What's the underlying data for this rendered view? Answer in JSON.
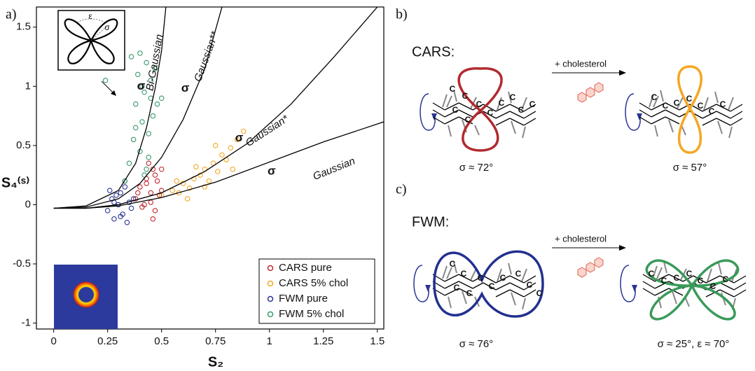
{
  "panel_labels": {
    "a": "a)",
    "b": "b)",
    "c": "c)"
  },
  "chart_data": {
    "type": "scatter",
    "xlabel": "S₂",
    "ylabel": "S₄⁽ˢ⁾",
    "xlim": [
      -0.08,
      1.53
    ],
    "ylim": [
      -1.05,
      1.67
    ],
    "xticks": [
      0,
      0.25,
      0.5,
      0.75,
      1,
      1.25,
      1.5
    ],
    "yticks": [
      -1,
      -0.5,
      0,
      0.5,
      1,
      1.5
    ],
    "legend": "lower right",
    "series": [
      {
        "name": "CARS pure",
        "color": "#c0282f",
        "x": [
          0.38,
          0.4,
          0.42,
          0.43,
          0.45,
          0.46,
          0.47,
          0.48,
          0.5,
          0.41,
          0.44,
          0.49,
          0.46,
          0.43,
          0.39,
          0.47,
          0.45,
          0.5
        ],
        "values": [
          0.05,
          0.15,
          0.0,
          0.22,
          0.1,
          0.3,
          -0.05,
          0.2,
          0.12,
          -0.02,
          0.35,
          0.08,
          -0.12,
          0.18,
          0.1,
          0.25,
          0.02,
          0.3
        ]
      },
      {
        "name": "CARS 5% chol",
        "color": "#f5a623",
        "x": [
          0.5,
          0.55,
          0.58,
          0.6,
          0.63,
          0.65,
          0.68,
          0.7,
          0.72,
          0.74,
          0.76,
          0.78,
          0.8,
          0.82,
          0.85,
          0.88,
          0.62,
          0.7,
          0.75,
          0.66,
          0.83,
          0.57
        ],
        "values": [
          0.08,
          0.12,
          0.1,
          0.18,
          0.14,
          0.22,
          0.25,
          0.3,
          0.2,
          0.35,
          0.28,
          0.42,
          0.38,
          0.48,
          0.55,
          0.62,
          0.05,
          0.15,
          0.5,
          0.32,
          0.3,
          0.2
        ]
      },
      {
        "name": "FWM pure",
        "color": "#2a3594",
        "x": [
          0.25,
          0.27,
          0.28,
          0.3,
          0.31,
          0.32,
          0.33,
          0.35,
          0.36,
          0.29,
          0.34,
          0.26,
          0.31,
          0.37,
          0.28,
          0.33
        ],
        "values": [
          -0.05,
          0.05,
          -0.12,
          0.0,
          0.1,
          -0.08,
          0.15,
          0.02,
          -0.03,
          0.08,
          -0.15,
          0.12,
          -0.1,
          0.05,
          0.02,
          0.2
        ]
      },
      {
        "name": "FWM 5% chol",
        "color": "#3a9a6a",
        "x": [
          0.24,
          0.33,
          0.35,
          0.37,
          0.38,
          0.39,
          0.4,
          0.41,
          0.42,
          0.43,
          0.44,
          0.45,
          0.46,
          0.47,
          0.48,
          0.4,
          0.42,
          0.44,
          0.38,
          0.36,
          0.45,
          0.5,
          0.41,
          0.43
        ],
        "values": [
          1.05,
          0.2,
          0.35,
          0.55,
          0.85,
          1.1,
          1.28,
          0.7,
          0.95,
          1.2,
          0.6,
          0.9,
          0.75,
          1.15,
          0.85,
          0.45,
          0.25,
          0.4,
          0.65,
          1.25,
          1.05,
          0.9,
          1.0,
          0.3
        ]
      }
    ],
    "curves": [
      {
        "name": "Bi-Gaussian",
        "sigma_label": "σ",
        "x": [
          0,
          0.15,
          0.3,
          0.38,
          0.43,
          0.47,
          0.5,
          0.52
        ],
        "values": [
          -0.03,
          -0.01,
          0.12,
          0.35,
          0.65,
          0.98,
          1.3,
          1.67
        ]
      },
      {
        "name": "Gaussian**",
        "sigma_label": "σ",
        "x": [
          0,
          0.15,
          0.3,
          0.4,
          0.5,
          0.6,
          0.7,
          0.78
        ],
        "values": [
          -0.03,
          -0.02,
          0.05,
          0.18,
          0.4,
          0.72,
          1.15,
          1.67
        ]
      },
      {
        "name": "Gaussian*",
        "sigma_label": "σ",
        "x": [
          0,
          0.15,
          0.3,
          0.5,
          0.7,
          0.9,
          1.1,
          1.3,
          1.5
        ],
        "values": [
          -0.03,
          -0.03,
          0.0,
          0.1,
          0.28,
          0.52,
          0.85,
          1.25,
          1.67
        ]
      },
      {
        "name": "Gaussian",
        "sigma_label": "σ",
        "x": [
          0,
          0.15,
          0.3,
          0.5,
          0.75,
          1.0,
          1.25,
          1.53
        ],
        "values": [
          -0.03,
          -0.03,
          -0.01,
          0.06,
          0.19,
          0.36,
          0.53,
          0.7
        ]
      }
    ],
    "inset_labels": {
      "epsilon": "ε",
      "sigma": "σ"
    }
  },
  "diagram": {
    "atom_label": "C",
    "cars": {
      "title": "CARS:",
      "arrow_label": "+ cholesterol",
      "left_caption": "σ ≈ 72°",
      "right_caption": "σ ≈ 57°"
    },
    "fwm": {
      "title": "FWM:",
      "arrow_label": "+ cholesterol",
      "left_caption": "σ ≈ 76°",
      "right_caption": "σ ≈ 25°, ε ≈ 70°"
    }
  }
}
